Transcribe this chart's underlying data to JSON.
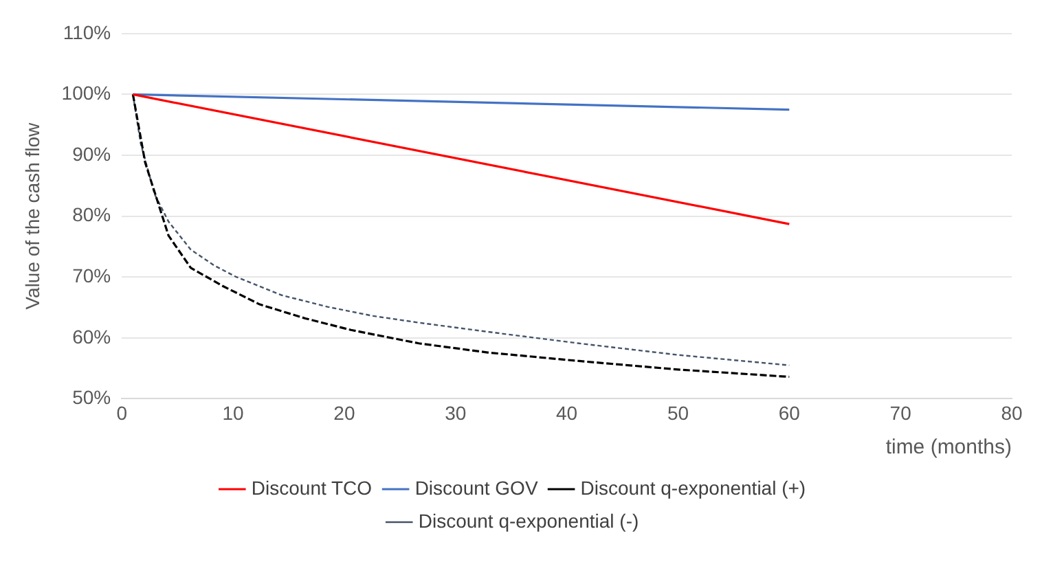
{
  "chart_data": {
    "type": "line",
    "xlabel": "time (months)",
    "ylabel": "Value of the cash flow",
    "xlim": [
      0,
      80
    ],
    "xticks": [
      0,
      10,
      20,
      30,
      40,
      50,
      60,
      70,
      80
    ],
    "ylim": [
      50,
      110
    ],
    "yticks": [
      {
        "value": 50,
        "label": "50%"
      },
      {
        "value": 60,
        "label": "60%"
      },
      {
        "value": 70,
        "label": "70%"
      },
      {
        "value": 80,
        "label": "80%"
      },
      {
        "value": 90,
        "label": "90%"
      },
      {
        "value": 100,
        "label": "100%"
      },
      {
        "value": 110,
        "label": "110%"
      }
    ],
    "grid": "y",
    "legend": "bottom",
    "marker": "none",
    "series": [
      {
        "name": "Discount TCO",
        "color": "#ff0000",
        "line_style": "solid",
        "x": [
          1,
          60
        ],
        "values": [
          100,
          78.7
        ]
      },
      {
        "name": "Discount GOV",
        "color": "#4472c4",
        "line_style": "solid",
        "x": [
          1,
          60
        ],
        "values": [
          100,
          97.5
        ]
      },
      {
        "name": "Discount q-exponential (+)",
        "color": "#000000",
        "line_style": "dashed",
        "x": [
          1,
          2.1,
          4.2,
          6.2,
          9.1,
          12.4,
          16.5,
          20.6,
          26.7,
          32.9,
          41.1,
          50,
          60
        ],
        "values": [
          100,
          88.8,
          76.8,
          71.5,
          68.5,
          65.5,
          63.2,
          61.3,
          59.1,
          57.6,
          56.2,
          54.8,
          53.6
        ]
      },
      {
        "name": "Discount q-exponential (-)",
        "color": "#44546a",
        "line_style": "dotted",
        "x": [
          1,
          1.7,
          2.95,
          4.2,
          6.2,
          8.3,
          10.3,
          14.4,
          18.5,
          22.6,
          26.7,
          32.9,
          41.1,
          50,
          60
        ],
        "values": [
          100,
          91.9,
          83.6,
          79.1,
          74.5,
          71.9,
          70,
          67,
          65.1,
          63.6,
          62.5,
          61,
          59.1,
          57.2,
          55.5
        ]
      }
    ]
  }
}
